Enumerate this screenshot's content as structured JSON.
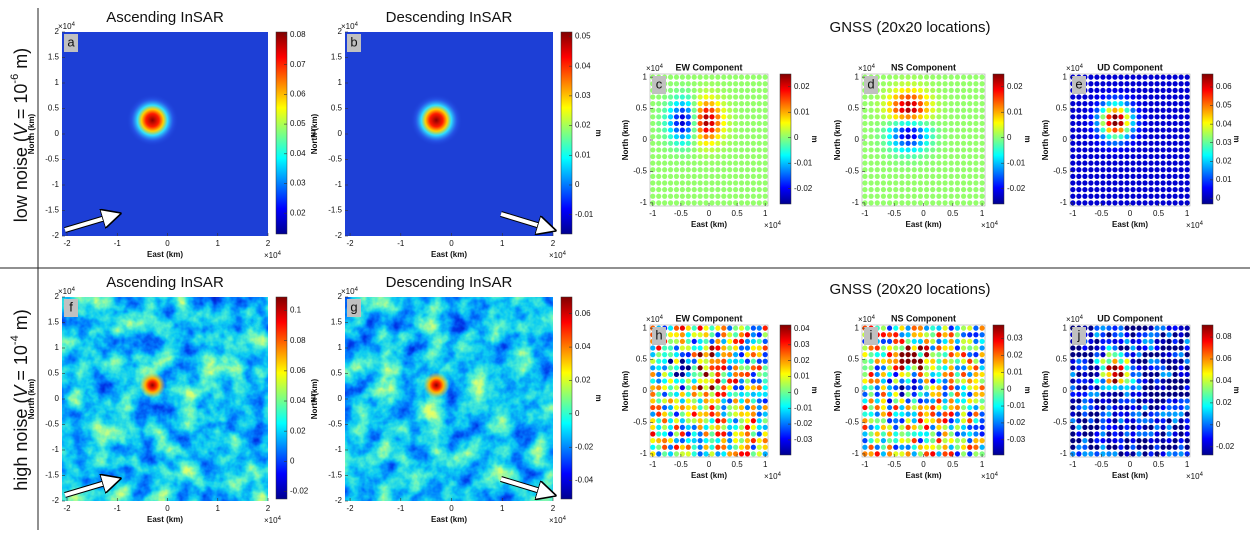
{
  "rows": [
    {
      "label": {
        "prefix": "low noise (",
        "var": "V",
        "mid": " = 10",
        "exp": "-6",
        "suffix": " m)"
      },
      "gnss_title": "GNSS (20x20 locations)",
      "panels": [
        {
          "kind": "insar",
          "letter": "a",
          "title": "Ascending InSAR",
          "xlabel": "East (km)",
          "ylabel": "North (km)",
          "multiplier": {
            "base": "×10",
            "exp": "4"
          },
          "xlim": [
            -2.1,
            2
          ],
          "ylim": [
            -2,
            2
          ],
          "xticks": [
            -2,
            -1,
            0,
            1,
            2
          ],
          "yticks": [
            -2,
            -1.5,
            -1,
            -0.5,
            0,
            0.5,
            1,
            1.5,
            2
          ],
          "clim": [
            0.013,
            0.081
          ],
          "cticks": [
            0.02,
            0.03,
            0.04,
            0.05,
            0.06,
            0.07,
            0.08
          ],
          "unit": "m",
          "noise": "low"
        },
        {
          "kind": "insar",
          "letter": "b",
          "title": "Descending InSAR",
          "xlabel": "East (km)",
          "ylabel": "North (km)",
          "multiplier": {
            "base": "×10",
            "exp": "4"
          },
          "xlim": [
            -2.1,
            2
          ],
          "ylim": [
            -2,
            2
          ],
          "xticks": [
            -2,
            -1,
            0,
            1,
            2
          ],
          "yticks": [
            -2,
            -1.5,
            -1,
            -0.5,
            0,
            0.5,
            1,
            1.5,
            2
          ],
          "clim": [
            -0.0165,
            0.0515
          ],
          "cticks": [
            -0.01,
            0,
            0.01,
            0.02,
            0.03,
            0.04,
            0.05
          ],
          "unit": "m",
          "noise": "low"
        },
        {
          "kind": "gnss",
          "component": "EW",
          "letter": "c",
          "title": "EW Component",
          "xlabel": "East (km)",
          "ylabel": "North (km)",
          "multiplier": {
            "base": "×10",
            "exp": "4"
          },
          "xlim": [
            -1.05,
            1.05
          ],
          "ylim": [
            -1.05,
            1.05
          ],
          "xticks": [
            -1,
            -0.5,
            0,
            0.5,
            1
          ],
          "yticks": [
            -1,
            -0.5,
            0,
            0.5,
            1
          ],
          "clim": [
            -0.026,
            0.025
          ],
          "cticks": [
            -0.02,
            -0.01,
            0,
            0.01,
            0.02
          ],
          "unit": "m",
          "noise": "low"
        },
        {
          "kind": "gnss",
          "component": "NS",
          "letter": "d",
          "title": "NS Component",
          "xlabel": "East (km)",
          "ylabel": "North (km)",
          "multiplier": {
            "base": "×10",
            "exp": "4"
          },
          "xlim": [
            -1.05,
            1.05
          ],
          "ylim": [
            -1.05,
            1.05
          ],
          "xticks": [
            -1,
            -0.5,
            0,
            0.5,
            1
          ],
          "yticks": [
            -1,
            -0.5,
            0,
            0.5,
            1
          ],
          "clim": [
            -0.026,
            0.025
          ],
          "cticks": [
            -0.02,
            -0.01,
            0,
            0.01,
            0.02
          ],
          "unit": "m",
          "noise": "low"
        },
        {
          "kind": "gnss",
          "component": "UD",
          "letter": "e",
          "title": "UD Component",
          "xlabel": "East (km)",
          "ylabel": "North (km)",
          "multiplier": {
            "base": "×10",
            "exp": "4"
          },
          "xlim": [
            -1.05,
            1.05
          ],
          "ylim": [
            -1.05,
            1.05
          ],
          "xticks": [
            -1,
            -0.5,
            0,
            0.5,
            1
          ],
          "yticks": [
            -1,
            -0.5,
            0,
            0.5,
            1
          ],
          "clim": [
            -0.003,
            0.067
          ],
          "cticks": [
            0,
            0.01,
            0.02,
            0.03,
            0.04,
            0.05,
            0.06
          ],
          "unit": "m",
          "noise": "low"
        }
      ]
    },
    {
      "label": {
        "prefix": "high noise (",
        "var": "V",
        "mid": " = 10",
        "exp": "-4",
        "suffix": " m)"
      },
      "gnss_title": "GNSS (20x20 locations)",
      "panels": [
        {
          "kind": "insar",
          "letter": "f",
          "title": "Ascending InSAR",
          "xlabel": "East (km)",
          "ylabel": "North (km)",
          "multiplier": {
            "base": "×10",
            "exp": "4"
          },
          "xlim": [
            -2.1,
            2
          ],
          "ylim": [
            -2,
            2
          ],
          "xticks": [
            -2,
            -1,
            0,
            1,
            2
          ],
          "yticks": [
            -2,
            -1.5,
            -1,
            -0.5,
            0,
            0.5,
            1,
            1.5,
            2
          ],
          "clim": [
            -0.025,
            0.109
          ],
          "cticks": [
            -0.02,
            0,
            0.02,
            0.04,
            0.06,
            0.08,
            0.1
          ],
          "unit": "m",
          "noise": "high"
        },
        {
          "kind": "insar",
          "letter": "g",
          "title": "Descending InSAR",
          "xlabel": "East (km)",
          "ylabel": "North (km)",
          "multiplier": {
            "base": "×10",
            "exp": "4"
          },
          "xlim": [
            -2.1,
            2
          ],
          "ylim": [
            -2,
            2
          ],
          "xticks": [
            -2,
            -1,
            0,
            1,
            2
          ],
          "yticks": [
            -2,
            -1.5,
            -1,
            -0.5,
            0,
            0.5,
            1,
            1.5,
            2
          ],
          "clim": [
            -0.051,
            0.07
          ],
          "cticks": [
            -0.04,
            -0.02,
            0,
            0.02,
            0.04,
            0.06
          ],
          "unit": "m",
          "noise": "high"
        },
        {
          "kind": "gnss",
          "component": "EW",
          "letter": "h",
          "title": "EW Component",
          "xlabel": "East (km)",
          "ylabel": "North (km)",
          "multiplier": {
            "base": "×10",
            "exp": "4"
          },
          "xlim": [
            -1.05,
            1.05
          ],
          "ylim": [
            -1.05,
            1.05
          ],
          "xticks": [
            -1,
            -0.5,
            0,
            0.5,
            1
          ],
          "yticks": [
            -1,
            -0.5,
            0,
            0.5,
            1
          ],
          "clim": [
            -0.0395,
            0.0425
          ],
          "cticks": [
            -0.03,
            -0.02,
            -0.01,
            0,
            0.01,
            0.02,
            0.03,
            0.04
          ],
          "unit": "m",
          "noise": "high"
        },
        {
          "kind": "gnss",
          "component": "NS",
          "letter": "i",
          "title": "NS Component",
          "xlabel": "East (km)",
          "ylabel": "North (km)",
          "multiplier": {
            "base": "×10",
            "exp": "4"
          },
          "xlim": [
            -1.05,
            1.05
          ],
          "ylim": [
            -1.05,
            1.05
          ],
          "xticks": [
            -1,
            -0.5,
            0,
            0.5,
            1
          ],
          "yticks": [
            -1,
            -0.5,
            0,
            0.5,
            1
          ],
          "clim": [
            -0.039,
            0.038
          ],
          "cticks": [
            -0.03,
            -0.02,
            -0.01,
            0,
            0.01,
            0.02,
            0.03
          ],
          "unit": "m",
          "noise": "high"
        },
        {
          "kind": "gnss",
          "component": "UD",
          "letter": "j",
          "title": "UD Component",
          "xlabel": "East (km)",
          "ylabel": "North (km)",
          "multiplier": {
            "base": "×10",
            "exp": "4"
          },
          "xlim": [
            -1.05,
            1.05
          ],
          "ylim": [
            -1.05,
            1.05
          ],
          "xticks": [
            -1,
            -0.5,
            0,
            0.5,
            1
          ],
          "yticks": [
            -1,
            -0.5,
            0,
            0.5,
            1
          ],
          "clim": [
            -0.0275,
            0.091
          ],
          "cticks": [
            -0.02,
            0,
            0.02,
            0.04,
            0.06,
            0.08
          ],
          "unit": "m",
          "noise": "high"
        }
      ]
    }
  ]
}
